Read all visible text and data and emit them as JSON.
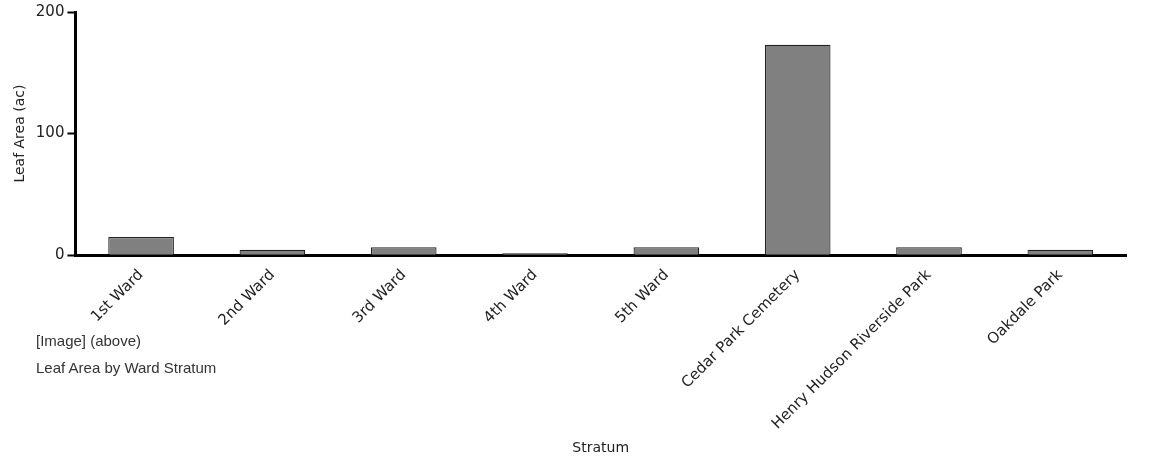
{
  "chart_data": {
    "type": "bar",
    "ylabel": "Leaf Area (ac)",
    "xlabel": "Stratum",
    "categories": [
      "1st Ward",
      "2nd Ward",
      "3rd Ward",
      "4th Ward",
      "5th Ward",
      "Cedar Park Cemetery",
      "Henry Hudson Riverside Park",
      "Oakdale Park"
    ],
    "values": [
      15,
      4.5,
      6.5,
      1.5,
      6.5,
      173,
      6.5,
      4.5
    ],
    "color": "#808080",
    "ylim": [
      0,
      200
    ],
    "yticks": [
      0,
      100,
      200
    ],
    "grid": false,
    "legend": false,
    "annotations": [
      "[Image] (above)",
      "Leaf Area by Ward Stratum"
    ]
  }
}
